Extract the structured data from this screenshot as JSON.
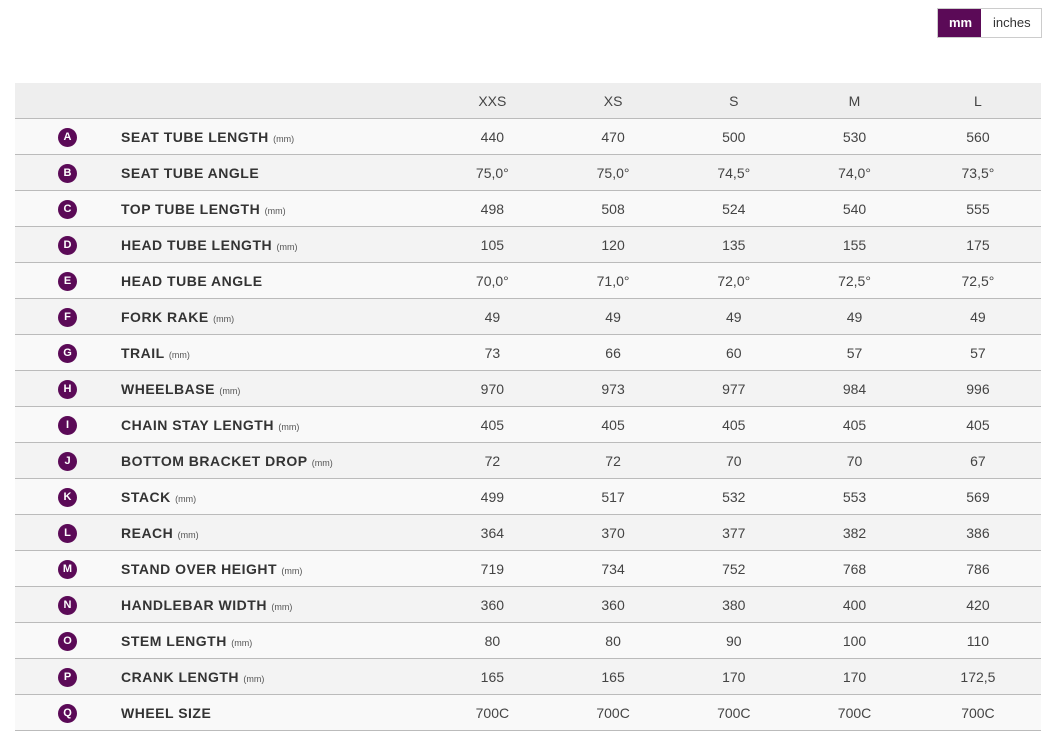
{
  "unit_toggle": {
    "mm": "mm",
    "inches": "inches",
    "active": "mm"
  },
  "accent_color": "#5b0a57",
  "sizes": [
    "XXS",
    "XS",
    "S",
    "M",
    "L"
  ],
  "rows": [
    {
      "letter": "A",
      "name": "SEAT TUBE LENGTH",
      "unit": "(mm)",
      "values": [
        "440",
        "470",
        "500",
        "530",
        "560"
      ]
    },
    {
      "letter": "B",
      "name": "SEAT TUBE ANGLE",
      "unit": "",
      "values": [
        "75,0°",
        "75,0°",
        "74,5°",
        "74,0°",
        "73,5°"
      ]
    },
    {
      "letter": "C",
      "name": "TOP TUBE LENGTH",
      "unit": "(mm)",
      "values": [
        "498",
        "508",
        "524",
        "540",
        "555"
      ]
    },
    {
      "letter": "D",
      "name": "HEAD TUBE LENGTH",
      "unit": "(mm)",
      "values": [
        "105",
        "120",
        "135",
        "155",
        "175"
      ]
    },
    {
      "letter": "E",
      "name": "HEAD TUBE ANGLE",
      "unit": "",
      "values": [
        "70,0°",
        "71,0°",
        "72,0°",
        "72,5°",
        "72,5°"
      ]
    },
    {
      "letter": "F",
      "name": "FORK RAKE",
      "unit": "(mm)",
      "values": [
        "49",
        "49",
        "49",
        "49",
        "49"
      ]
    },
    {
      "letter": "G",
      "name": "TRAIL",
      "unit": "(mm)",
      "values": [
        "73",
        "66",
        "60",
        "57",
        "57"
      ]
    },
    {
      "letter": "H",
      "name": "WHEELBASE",
      "unit": "(mm)",
      "values": [
        "970",
        "973",
        "977",
        "984",
        "996"
      ]
    },
    {
      "letter": "I",
      "name": "CHAIN STAY LENGTH",
      "unit": "(mm)",
      "values": [
        "405",
        "405",
        "405",
        "405",
        "405"
      ]
    },
    {
      "letter": "J",
      "name": "BOTTOM BRACKET DROP",
      "unit": "(mm)",
      "values": [
        "72",
        "72",
        "70",
        "70",
        "67"
      ]
    },
    {
      "letter": "K",
      "name": "STACK",
      "unit": "(mm)",
      "values": [
        "499",
        "517",
        "532",
        "553",
        "569"
      ]
    },
    {
      "letter": "L",
      "name": "REACH",
      "unit": "(mm)",
      "values": [
        "364",
        "370",
        "377",
        "382",
        "386"
      ]
    },
    {
      "letter": "M",
      "name": "STAND OVER HEIGHT",
      "unit": "(mm)",
      "values": [
        "719",
        "734",
        "752",
        "768",
        "786"
      ]
    },
    {
      "letter": "N",
      "name": "HANDLEBAR WIDTH",
      "unit": "(mm)",
      "values": [
        "360",
        "360",
        "380",
        "400",
        "420"
      ]
    },
    {
      "letter": "O",
      "name": "STEM LENGTH",
      "unit": "(mm)",
      "values": [
        "80",
        "80",
        "90",
        "100",
        "110"
      ]
    },
    {
      "letter": "P",
      "name": "CRANK LENGTH",
      "unit": "(mm)",
      "values": [
        "165",
        "165",
        "170",
        "170",
        "172,5"
      ]
    },
    {
      "letter": "Q",
      "name": "WHEEL SIZE",
      "unit": "",
      "values": [
        "700C",
        "700C",
        "700C",
        "700C",
        "700C"
      ]
    }
  ]
}
